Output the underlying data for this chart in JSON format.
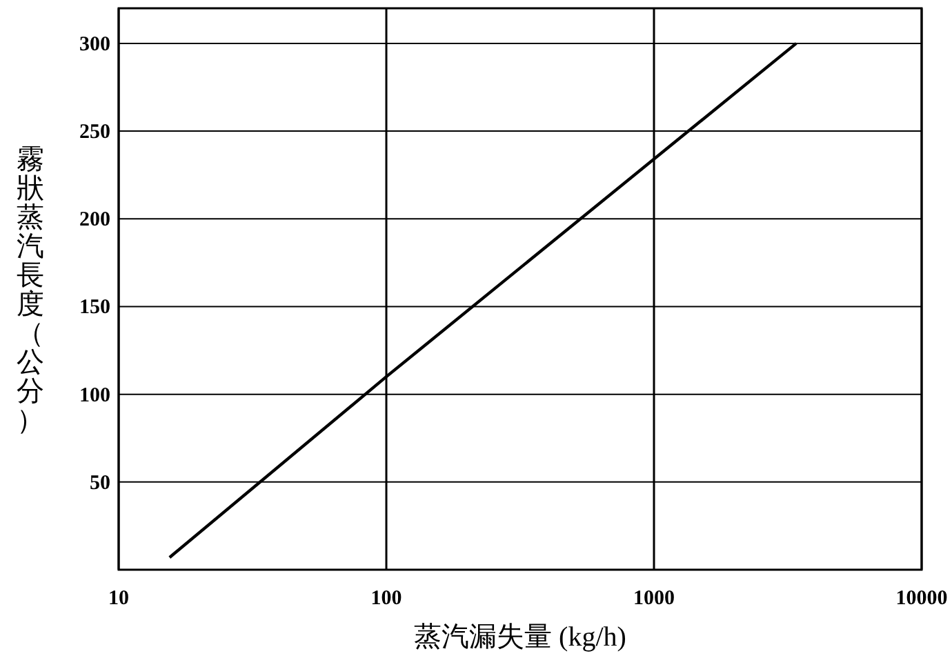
{
  "chart_data": {
    "type": "line",
    "xlabel": "蒸汽漏失量 (kg/h)",
    "ylabel": "霧狀蒸汽長度（公分）",
    "log": "x",
    "xlim": [
      10,
      10000
    ],
    "xticks": [
      10,
      100,
      1000,
      10000
    ],
    "ylim": [
      0,
      320
    ],
    "yticks": [
      50,
      100,
      150,
      200,
      250,
      300
    ],
    "grid": true,
    "series": [
      {
        "color": "#000000",
        "x": [
          15.5,
          100,
          3400
        ],
        "values": [
          7,
          110,
          300
        ]
      }
    ]
  }
}
